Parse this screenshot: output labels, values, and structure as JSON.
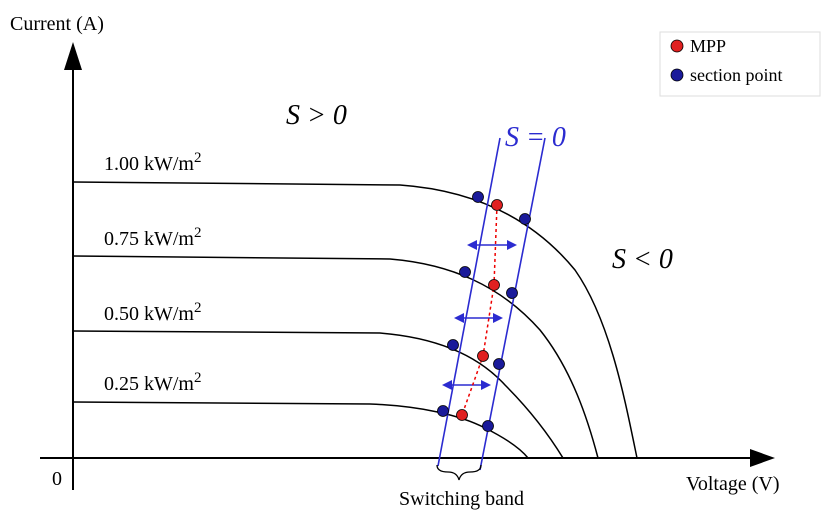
{
  "axes": {
    "y_label": "Current (A)",
    "x_label": "Voltage (V)",
    "origin": "0"
  },
  "regions": {
    "positive": "S > 0",
    "zero": "S = 0",
    "negative": "S < 0"
  },
  "curves": [
    {
      "label": "1.00 kW/m",
      "sup": "2"
    },
    {
      "label": "0.75 kW/m",
      "sup": "2"
    },
    {
      "label": "0.50 kW/m",
      "sup": "2"
    },
    {
      "label": "0.25 kW/m",
      "sup": "2"
    }
  ],
  "legend": [
    {
      "label": "MPP"
    },
    {
      "label": "section point"
    }
  ],
  "band_label": "Switching band"
}
